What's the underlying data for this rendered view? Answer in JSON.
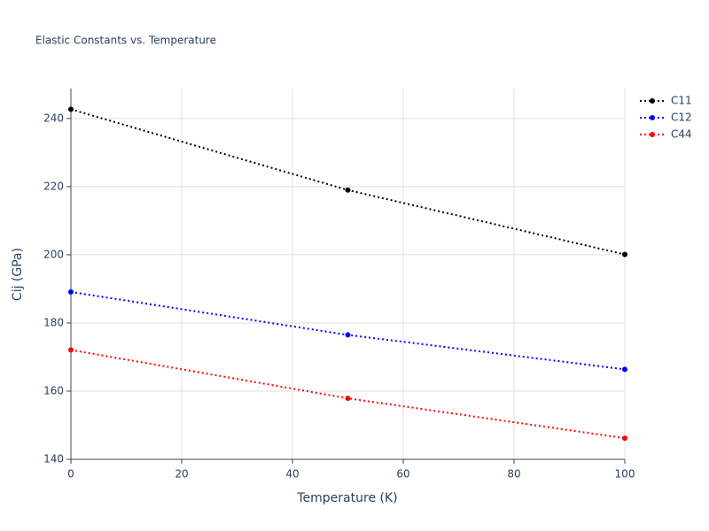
{
  "chart_data": {
    "type": "line",
    "title": "Elastic Constants vs. Temperature",
    "x_label": "Temperature (K)",
    "y_label": "Cij (GPa)",
    "x": [
      0,
      50,
      100
    ],
    "series": [
      {
        "name": "C11",
        "color": "#000000",
        "values": [
          242.7,
          219.0,
          200.1
        ]
      },
      {
        "name": "C12",
        "color": "#0000ff",
        "values": [
          189.1,
          176.5,
          166.4
        ]
      },
      {
        "name": "C44",
        "color": "#ff0000",
        "values": [
          172.1,
          157.9,
          146.2
        ]
      }
    ],
    "xlim": [
      0,
      100
    ],
    "xticks": [
      0,
      20,
      40,
      60,
      80,
      100
    ],
    "ylim": [
      140,
      248.8
    ],
    "yticks": [
      140,
      160,
      180,
      200,
      220,
      240
    ],
    "grid": true,
    "legend": "top-right",
    "line_style": "dotted"
  }
}
